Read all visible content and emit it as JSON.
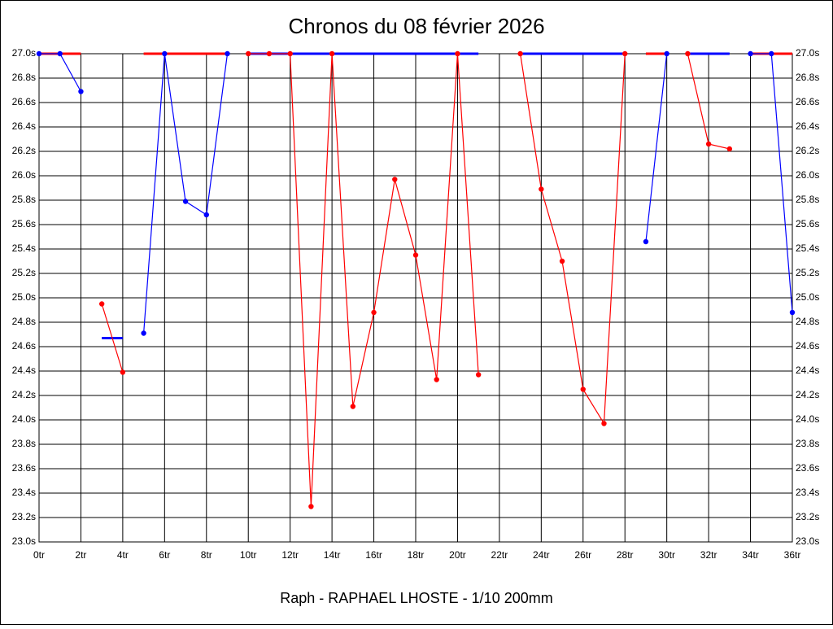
{
  "chart_data": {
    "type": "line",
    "title": "Chronos du 08 février 2026",
    "footer": "Raph - RAPHAEL LHOSTE - 1/10 200mm",
    "grid": true,
    "xlim": [
      0,
      36
    ],
    "ylim": [
      23.0,
      27.0
    ],
    "xticks": [
      {
        "value": 0,
        "label": "0tr"
      },
      {
        "value": 2,
        "label": "2tr"
      },
      {
        "value": 4,
        "label": "4tr"
      },
      {
        "value": 6,
        "label": "6tr"
      },
      {
        "value": 8,
        "label": "8tr"
      },
      {
        "value": 10,
        "label": "10tr"
      },
      {
        "value": 12,
        "label": "12tr"
      },
      {
        "value": 14,
        "label": "14tr"
      },
      {
        "value": 16,
        "label": "16tr"
      },
      {
        "value": 18,
        "label": "18tr"
      },
      {
        "value": 20,
        "label": "20tr"
      },
      {
        "value": 22,
        "label": "22tr"
      },
      {
        "value": 24,
        "label": "24tr"
      },
      {
        "value": 26,
        "label": "26tr"
      },
      {
        "value": 28,
        "label": "28tr"
      },
      {
        "value": 30,
        "label": "30tr"
      },
      {
        "value": 32,
        "label": "32tr"
      },
      {
        "value": 34,
        "label": "34tr"
      },
      {
        "value": 36,
        "label": "36tr"
      }
    ],
    "yticks": [
      {
        "value": 23.0,
        "label": "23.0s"
      },
      {
        "value": 23.2,
        "label": "23.2s"
      },
      {
        "value": 23.4,
        "label": "23.4s"
      },
      {
        "value": 23.6,
        "label": "23.6s"
      },
      {
        "value": 23.8,
        "label": "23.8s"
      },
      {
        "value": 24.0,
        "label": "24.0s"
      },
      {
        "value": 24.2,
        "label": "24.2s"
      },
      {
        "value": 24.4,
        "label": "24.4s"
      },
      {
        "value": 24.6,
        "label": "24.6s"
      },
      {
        "value": 24.8,
        "label": "24.8s"
      },
      {
        "value": 25.0,
        "label": "25.0s"
      },
      {
        "value": 25.2,
        "label": "25.2s"
      },
      {
        "value": 25.4,
        "label": "25.4s"
      },
      {
        "value": 25.6,
        "label": "25.6s"
      },
      {
        "value": 25.8,
        "label": "25.8s"
      },
      {
        "value": 26.0,
        "label": "26.0s"
      },
      {
        "value": 26.2,
        "label": "26.2s"
      },
      {
        "value": 26.4,
        "label": "26.4s"
      },
      {
        "value": 26.6,
        "label": "26.6s"
      },
      {
        "value": 26.8,
        "label": "26.8s"
      },
      {
        "value": 27.0,
        "label": "27.0s"
      }
    ],
    "series": [
      {
        "color": "#0000ff",
        "x": [
          0,
          1,
          2
        ],
        "values": [
          27.0,
          27.0,
          26.69
        ],
        "mean": 27.0,
        "mean_color": "#ff0000"
      },
      {
        "color": "#ff0000",
        "x": [
          3,
          4
        ],
        "values": [
          24.95,
          24.39
        ],
        "mean": 24.67,
        "mean_color": "#0000ff"
      },
      {
        "color": "#0000ff",
        "x": [
          5,
          6,
          7,
          8,
          9
        ],
        "values": [
          24.71,
          27.0,
          25.79,
          25.68,
          27.0
        ],
        "mean": 27.0,
        "mean_color": "#ff0000"
      },
      {
        "color": "#ff0000",
        "x": [
          10,
          11,
          12,
          13,
          14,
          15,
          16,
          17,
          18,
          19,
          20,
          21
        ],
        "values": [
          27.0,
          27.0,
          27.0,
          23.29,
          27.0,
          24.11,
          24.88,
          25.97,
          25.35,
          24.33,
          27.0,
          24.37
        ],
        "mean": 27.0,
        "mean_color": "#0000ff"
      },
      {
        "color": "#ff0000",
        "x": [
          23,
          24,
          25,
          26,
          27,
          28
        ],
        "values": [
          27.0,
          25.89,
          25.3,
          24.25,
          23.97,
          27.0
        ],
        "mean": 27.0,
        "mean_color": "#0000ff"
      },
      {
        "color": "#0000ff",
        "x": [
          29,
          30
        ],
        "values": [
          25.46,
          27.0
        ],
        "mean": 27.0,
        "mean_color": "#ff0000"
      },
      {
        "color": "#ff0000",
        "x": [
          31,
          32,
          33
        ],
        "values": [
          27.0,
          26.26,
          26.22
        ],
        "mean": 27.0,
        "mean_color": "#0000ff"
      },
      {
        "color": "#0000ff",
        "x": [
          34,
          35,
          36
        ],
        "values": [
          27.0,
          27.0,
          24.88
        ],
        "mean": 27.0,
        "mean_color": "#ff0000"
      }
    ]
  }
}
